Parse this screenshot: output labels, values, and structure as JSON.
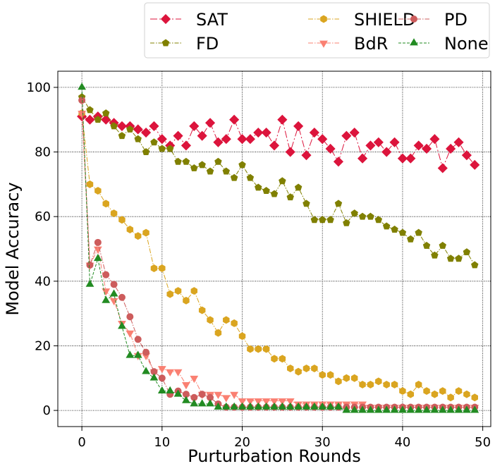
{
  "chart_data": {
    "type": "line",
    "title": "",
    "xlabel": "Purturbation Rounds",
    "ylabel": "Model Accuracy",
    "xlim": [
      -3,
      51
    ],
    "ylim": [
      -5,
      105
    ],
    "xticks": [
      0,
      10,
      20,
      30,
      40,
      50
    ],
    "yticks": [
      0,
      20,
      40,
      60,
      80,
      100
    ],
    "grid": true,
    "legend_position": "top",
    "x": [
      0,
      1,
      2,
      3,
      4,
      5,
      6,
      7,
      8,
      9,
      10,
      11,
      12,
      13,
      14,
      15,
      16,
      17,
      18,
      19,
      20,
      21,
      22,
      23,
      24,
      25,
      26,
      27,
      28,
      29,
      30,
      31,
      32,
      33,
      34,
      35,
      36,
      37,
      38,
      39,
      40,
      41,
      42,
      43,
      44,
      45,
      46,
      47,
      48,
      49
    ],
    "series": [
      {
        "name": "SAT",
        "color": "#dc143c",
        "marker": "diamond",
        "dash": "10,3,2,3",
        "values": [
          91,
          90,
          91,
          90,
          89,
          88,
          88,
          87,
          86,
          88,
          84,
          82,
          85,
          82,
          88,
          85,
          89,
          83,
          84,
          90,
          84,
          84,
          86,
          86,
          82,
          90,
          80,
          88,
          79,
          86,
          84,
          81,
          77,
          85,
          86,
          78,
          82,
          83,
          80,
          83,
          78,
          78,
          82,
          81,
          84,
          75,
          81,
          83,
          79,
          76
        ]
      },
      {
        "name": "FD",
        "color": "#808000",
        "marker": "pentagon",
        "dash": "6,2,1.5,2",
        "values": [
          97,
          93,
          90,
          92,
          88,
          85,
          87,
          84,
          80,
          83,
          81,
          81,
          77,
          77,
          75,
          76,
          74,
          77,
          74,
          72,
          76,
          72,
          69,
          68,
          67,
          71,
          66,
          69,
          64,
          59,
          59,
          59,
          64,
          58,
          61,
          60,
          60,
          59,
          57,
          56,
          55,
          53,
          55,
          51,
          48,
          51,
          47,
          47,
          49,
          45
        ]
      },
      {
        "name": "SHIELD",
        "color": "#daa520",
        "marker": "hexagon",
        "dash": "7,2,1.5,2",
        "values": [
          92,
          70,
          68,
          64,
          61,
          59,
          56,
          54,
          55,
          44,
          44,
          36,
          37,
          34,
          37,
          31,
          28,
          24,
          28,
          27,
          23,
          19,
          19,
          19,
          16,
          16,
          13,
          12,
          13,
          13,
          11,
          11,
          9,
          10,
          10,
          8,
          8,
          9,
          8,
          8,
          6,
          5,
          8,
          6,
          5,
          6,
          4,
          6,
          5,
          4
        ]
      },
      {
        "name": "BdR",
        "color": "#fa8072",
        "marker": "triangle-down",
        "dash": "7,2,1.5,2",
        "values": [
          92,
          45,
          50,
          37,
          34,
          27,
          24,
          17,
          17,
          12,
          13,
          12,
          12,
          8,
          10,
          5,
          5,
          5,
          4,
          5,
          3,
          3,
          3,
          3,
          3,
          3,
          3,
          2,
          2,
          2,
          2,
          2,
          2,
          2,
          2,
          2,
          1,
          1,
          1,
          1,
          1,
          1,
          1,
          1,
          1,
          1,
          1,
          1,
          1,
          1
        ]
      },
      {
        "name": "PD",
        "color": "#cd5c5c",
        "marker": "circle",
        "dash": "7,2,1.5,2",
        "values": [
          96,
          45,
          52,
          42,
          39,
          35,
          29,
          22,
          18,
          12,
          10,
          5,
          6,
          5,
          4,
          5,
          4,
          2,
          1,
          1,
          1,
          1,
          1,
          1,
          1,
          1,
          1,
          1,
          1,
          1,
          1,
          1,
          1,
          1,
          1,
          1,
          1,
          1,
          1,
          1,
          1,
          1,
          1,
          1,
          1,
          1,
          1,
          1,
          1,
          1
        ]
      },
      {
        "name": "None",
        "color": "#228b22",
        "marker": "triangle-up",
        "dash": "4,2",
        "values": [
          100,
          39,
          47,
          34,
          36,
          26,
          17,
          17,
          12,
          10,
          6,
          6,
          5,
          3,
          2,
          2,
          2,
          1,
          1,
          1,
          1,
          1,
          1,
          1,
          1,
          1,
          1,
          1,
          1,
          1,
          1,
          1,
          1,
          0,
          0,
          0,
          0,
          0,
          0,
          0,
          0,
          0,
          0,
          0,
          0,
          0,
          0,
          0,
          0,
          0
        ]
      }
    ]
  }
}
